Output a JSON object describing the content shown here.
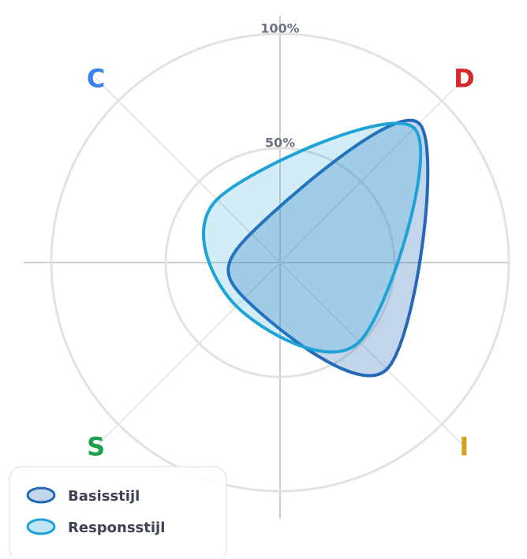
{
  "chart_data": {
    "type": "radar",
    "categories": [
      "D",
      "I",
      "S",
      "C"
    ],
    "category_colors": [
      "#d62828",
      "#d4a017",
      "#1fa04a",
      "#3b82f0"
    ],
    "series": [
      {
        "name": "Basisstijl",
        "color": "#2468b8",
        "values": [
          86,
          66,
          22,
          18
        ]
      },
      {
        "name": "Responsstijl",
        "color": "#1ea3d6",
        "values": [
          83,
          49,
          27,
          39
        ]
      }
    ],
    "rlim": [
      0,
      100
    ],
    "rticks": [
      {
        "value": 50,
        "label": "50%"
      },
      {
        "value": 100,
        "label": "100%"
      }
    ],
    "grid": true,
    "legend": "lower left"
  }
}
